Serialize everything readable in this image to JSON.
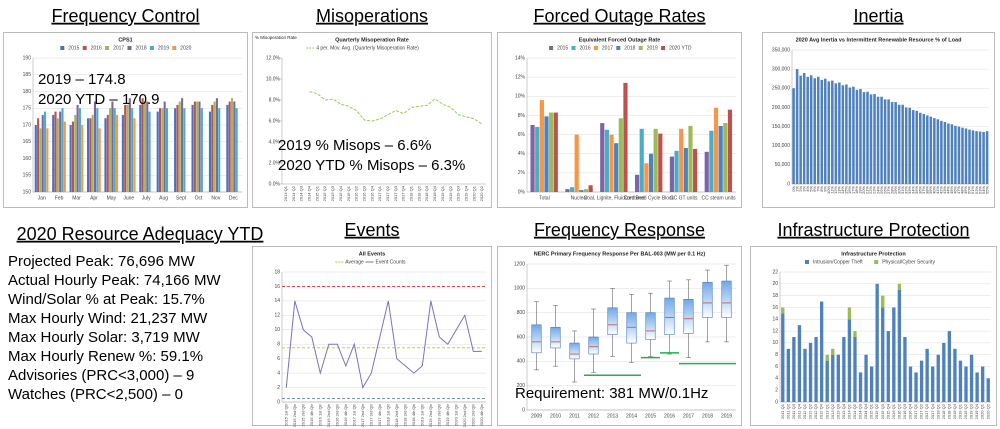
{
  "chart_data": [
    {
      "type": "bar",
      "heading": "Frequency Control",
      "title": "CPS1",
      "categories": [
        "Jan",
        "Feb",
        "Mar",
        "Apr",
        "May",
        "June",
        "July",
        "Aug",
        "Sept",
        "Oct",
        "Nov",
        "Dec"
      ],
      "series": [
        {
          "name": "2015",
          "color": "#4472c4",
          "values": [
            170,
            173,
            170,
            172,
            172,
            173,
            176,
            174,
            175,
            176,
            174,
            176
          ]
        },
        {
          "name": "2016",
          "color": "#c0504d",
          "values": [
            172,
            174,
            171,
            172,
            173,
            176,
            178,
            175,
            176,
            177,
            176,
            177
          ]
        },
        {
          "name": "2017",
          "color": "#9bbb59",
          "values": [
            169,
            172,
            173,
            173,
            175,
            176,
            177,
            175,
            177,
            177,
            177,
            178
          ]
        },
        {
          "name": "2018",
          "color": "#8064a2",
          "values": [
            173,
            174,
            176,
            177,
            177,
            178,
            177,
            177,
            178,
            177,
            178,
            177
          ]
        },
        {
          "name": "2019",
          "color": "#4bacc6",
          "values": [
            174,
            175,
            175,
            175,
            175,
            175,
            174,
            175,
            175,
            175,
            175,
            175
          ]
        },
        {
          "name": "2020",
          "color": "#f79646",
          "values": [
            169,
            171,
            170,
            169,
            173,
            172,
            null,
            null,
            null,
            null,
            null,
            null
          ]
        }
      ],
      "ylim": [
        150,
        190
      ],
      "yticks": [
        150,
        155,
        160,
        165,
        170,
        175,
        180,
        185,
        190
      ],
      "grid": true,
      "annotations": [
        "2019 – 174.8",
        "2020 YTD – 170.9"
      ]
    },
    {
      "type": "line",
      "heading": "Misoperations",
      "title": "Quarterly Misoperation Rate",
      "y_label": "% Misoperation Rate",
      "categories": [
        "2014 Q1",
        "2014 Q2",
        "2014 Q3",
        "2014 Q4",
        "2015 Q1",
        "2015 Q2",
        "2015 Q3",
        "2015 Q4",
        "2016 Q1",
        "2016 Q2",
        "2016 Q3",
        "2016 Q4",
        "2017 Q1",
        "2017 Q2",
        "2017 Q3",
        "2017 Q4",
        "2018 Q1",
        "2018 Q2",
        "2018 Q3",
        "2018 Q4",
        "2019 Q1",
        "2019 Q2",
        "2019 Q3",
        "2019 Q4",
        "2020 Q1",
        "2020 Q2"
      ],
      "series": [
        {
          "name": "4 per. Mov. Avg. (Quarterly Misoperation Rate)",
          "color": "#92d050",
          "dashed": true,
          "values": [
            null,
            null,
            null,
            8.8,
            8.6,
            8.0,
            8.1,
            7.6,
            7.4,
            7.0,
            6.1,
            6.0,
            6.2,
            6.6,
            7.0,
            6.7,
            7.3,
            7.4,
            7.5,
            8.1,
            7.6,
            7.3,
            6.6,
            6.4,
            6.2,
            5.7
          ]
        }
      ],
      "ylim": [
        0,
        12
      ],
      "yticks": [
        {
          "value": 0,
          "label": "0.0%"
        },
        {
          "value": 2,
          "label": "2.0%"
        },
        {
          "value": 4,
          "label": "4.0%"
        },
        {
          "value": 6,
          "label": "6.0%"
        },
        {
          "value": 8,
          "label": "8.0%"
        },
        {
          "value": 10,
          "label": "10.0%"
        },
        {
          "value": 12,
          "label": "12.0%"
        }
      ],
      "grid": false,
      "annotations": [
        "2019 % Misops – 6.6%",
        "2020 YTD % Misops – 6.3%"
      ]
    },
    {
      "type": "bar",
      "heading": "Forced Outage Rates",
      "title": "Equivalent Forced Outage Rate",
      "categories": [
        "Total",
        "Nuclear",
        "Coal, Lignite, Fluidized Bed",
        "Combined Cycle Block",
        "CC GT units",
        "CC steam units"
      ],
      "series": [
        {
          "name": "2015",
          "color": "#7f63a7",
          "values": [
            7.0,
            0.3,
            7.2,
            1.8,
            3.7,
            4.2
          ]
        },
        {
          "name": "2016",
          "color": "#4bacc6",
          "values": [
            6.8,
            0.5,
            6.5,
            6.6,
            4.3,
            6.4
          ]
        },
        {
          "name": "2017",
          "color": "#f79646",
          "values": [
            9.6,
            6.0,
            6.0,
            3.0,
            6.6,
            8.8
          ]
        },
        {
          "name": "2018",
          "color": "#4f81bd",
          "values": [
            7.9,
            0.2,
            5.1,
            4.0,
            4.6,
            6.9
          ]
        },
        {
          "name": "2019",
          "color": "#9bbb59",
          "values": [
            8.3,
            0.3,
            7.7,
            6.6,
            6.9,
            7.2
          ]
        },
        {
          "name": "2020 YTD",
          "color": "#c0504d",
          "values": [
            8.3,
            0.7,
            11.4,
            6.1,
            4.5,
            8.6
          ]
        }
      ],
      "ylim": [
        0,
        14
      ],
      "yticks": [
        {
          "value": 0,
          "label": "0%"
        },
        {
          "value": 2,
          "label": "2%"
        },
        {
          "value": 4,
          "label": "4%"
        },
        {
          "value": 6,
          "label": "6%"
        },
        {
          "value": 8,
          "label": "8%"
        },
        {
          "value": 10,
          "label": "10%"
        },
        {
          "value": 12,
          "label": "12%"
        },
        {
          "value": 14,
          "label": "14%"
        }
      ],
      "grid": true
    },
    {
      "type": "bar",
      "heading": "Inertia",
      "title": "2020 Avg Inertia vs Intermittent Renewable Resource % of Load",
      "categories": [
        "0%",
        "1%",
        "2%",
        "3%",
        "4%",
        "5%",
        "6%",
        "7%",
        "8%",
        "9%",
        "10%",
        "11%",
        "12%",
        "13%",
        "14%",
        "15%",
        "16%",
        "17%",
        "18%",
        "19%",
        "20%",
        "21%",
        "22%",
        "23%",
        "24%",
        "25%",
        "26%",
        "27%",
        "28%",
        "29%",
        "30%",
        "31%",
        "32%",
        "33%",
        "34%",
        "35%",
        "36%",
        "37%",
        "38%",
        "39%",
        "40%",
        "41%",
        "42%",
        "43%",
        "44%",
        "45%",
        "46%",
        "47%",
        "48%",
        "49%",
        "50%",
        "51%",
        "52%",
        "53%",
        "54%",
        "55%"
      ],
      "series": [
        {
          "color": "#4f81bd",
          "values": [
            250000,
            300000,
            283000,
            290000,
            280000,
            284000,
            276000,
            280000,
            272000,
            275000,
            268000,
            270000,
            263000,
            265000,
            258000,
            260000,
            252000,
            254000,
            246000,
            248000,
            240000,
            241000,
            234000,
            235000,
            228000,
            228000,
            221000,
            221000,
            214000,
            214000,
            207000,
            207000,
            200000,
            199000,
            193000,
            191000,
            186000,
            183000,
            179000,
            176000,
            172000,
            169000,
            165000,
            162000,
            158000,
            156000,
            152000,
            150000,
            147000,
            145000,
            142000,
            140000,
            138000,
            137000,
            136000,
            138000
          ]
        }
      ],
      "ylim": [
        0,
        350000
      ],
      "yticks": [
        0,
        {
          "value": 50000,
          "label": "50,000"
        },
        {
          "value": 100000,
          "label": "100,000"
        },
        {
          "value": 150000,
          "label": "150,000"
        },
        {
          "value": 200000,
          "label": "200,000"
        },
        {
          "value": 250000,
          "label": "250,000"
        },
        {
          "value": 300000,
          "label": "300,000"
        },
        {
          "value": 350000,
          "label": "350,000"
        }
      ],
      "grid": true
    },
    {
      "type": "line",
      "heading": "Events",
      "title": "All Events",
      "categories": [
        "2015 1st Qtr",
        "2015 2nd Qtr",
        "2015 3rd Qtr",
        "2015 4th Qtr",
        "2016 1st Qtr",
        "2016 2nd Qtr",
        "2016 3rd Qtr",
        "2016 4th Qtr",
        "2017 1st Qtr",
        "2017 2nd Qtr",
        "2017 3rd Qtr",
        "2017 4th Qtr",
        "2018 1st Qtr",
        "2018 2nd Qtr",
        "2018 3rd Qtr",
        "2018 4th Qtr",
        "2019 1st Qtr",
        "2019 2nd Qtr",
        "2019 3rd Qtr",
        "2019 4th Qtr",
        "2020 1st Qtr",
        "2020 2nd Qtr",
        "2020 3rd Qtr",
        "2020 4th Qtr"
      ],
      "reference_lines": [
        {
          "name": "Average",
          "value": 7.5,
          "color": "#c8c800"
        },
        {
          "value": 16,
          "color": "#e03030"
        },
        {
          "value": 0.5,
          "color": "#4472c4"
        }
      ],
      "series": [
        {
          "name": "Event Counts",
          "color": "#7f6fc0",
          "values": [
            2,
            14,
            10,
            9,
            4,
            8,
            8,
            5,
            8,
            2,
            4,
            9,
            14,
            6,
            5,
            4,
            5,
            14,
            9,
            8,
            10,
            12,
            7,
            7
          ]
        }
      ],
      "ylim": [
        0,
        18
      ],
      "yticks": [
        0,
        2,
        4,
        6,
        8,
        10,
        12,
        14,
        16,
        18
      ],
      "grid": true
    },
    {
      "type": "box",
      "heading": "Frequency Response",
      "title": "NERC Primary Frequency Response Per BAL-003 (MW per 0.1 Hz)",
      "categories": [
        "2009",
        "2010",
        "2011",
        "2012",
        "2013",
        "2014",
        "2015",
        "2016",
        "2017",
        "2018",
        "2019"
      ],
      "boxes": [
        {
          "whislo": 330,
          "q1": 470,
          "med": 560,
          "q3": 700,
          "whishi": 890
        },
        {
          "whislo": 360,
          "q1": 510,
          "med": 560,
          "q3": 680,
          "whishi": 860
        },
        {
          "whislo": 230,
          "q1": 420,
          "med": 460,
          "q3": 550,
          "whishi": 650
        },
        {
          "whislo": 310,
          "q1": 460,
          "med": 520,
          "q3": 600,
          "whishi": 830
        },
        {
          "whislo": 440,
          "q1": 620,
          "med": 700,
          "q3": 840,
          "whishi": 1000
        },
        {
          "whislo": 390,
          "q1": 550,
          "med": 680,
          "q3": 800,
          "whishi": 950
        },
        {
          "whislo": 440,
          "q1": 580,
          "med": 650,
          "q3": 800,
          "whishi": 960
        },
        {
          "whislo": 460,
          "q1": 620,
          "med": 760,
          "q3": 920,
          "whishi": 1060
        },
        {
          "whislo": 430,
          "q1": 630,
          "med": 750,
          "q3": 910,
          "whishi": 1070
        },
        {
          "whislo": 560,
          "q1": 760,
          "med": 880,
          "q3": 1050,
          "whishi": 1150
        },
        {
          "whislo": 560,
          "q1": 760,
          "med": 880,
          "q3": 1060,
          "whishi": 1190
        }
      ],
      "requirement": {
        "color": "#22b14c",
        "values": [
          null,
          null,
          null,
          286,
          286,
          286,
          430,
          470,
          381,
          381,
          381
        ]
      },
      "ylim": [
        0,
        1200
      ],
      "yticks": [
        0,
        200,
        400,
        600,
        800,
        1000,
        1200
      ],
      "grid": true,
      "annotations": [
        "Requirement: 381 MW/0.1Hz"
      ]
    },
    {
      "type": "bar",
      "heading": "Infrastructure Protection",
      "title": "Infrastructure Protection",
      "stacked": true,
      "categories": [
        "2011 Q1",
        "2011 Q2",
        "2011 Q3",
        "2011 Q4",
        "2012 Q1",
        "2012 Q2",
        "2012 Q3",
        "2012 Q4",
        "2013 Q1",
        "2013 Q2",
        "2013 Q3",
        "2013 Q4",
        "2014 Q1",
        "2014 Q2",
        "2014 Q3",
        "2014 Q4",
        "2015 Q1",
        "2015 Q2",
        "2015 Q3",
        "2015 Q4",
        "2016 Q1",
        "2016 Q2",
        "2016 Q3",
        "2016 Q4",
        "2017 Q1",
        "2017 Q2",
        "2017 Q3",
        "2017 Q4",
        "2018 Q1",
        "2018 Q2",
        "2018 Q3",
        "2018 Q4",
        "2019 Q1",
        "2019 Q2",
        "2019 Q3",
        "2019 Q4",
        "2020 Q1",
        "2020 Q2"
      ],
      "series": [
        {
          "name": "Intrusion/Copper Theft",
          "color": "#4f81bd",
          "values": [
            15,
            9,
            11,
            13,
            9,
            10,
            11,
            17,
            7,
            8,
            8,
            11,
            14,
            11,
            5,
            8,
            6,
            20,
            16,
            12,
            16,
            19,
            11,
            6,
            5,
            7,
            9,
            6,
            8,
            10,
            12,
            9,
            7,
            6,
            8,
            5,
            6,
            4
          ]
        },
        {
          "name": "Physical/Cyber Security",
          "color": "#9bbb59",
          "values": [
            1,
            0,
            0,
            0,
            0,
            0,
            0,
            0,
            1,
            1,
            0,
            0,
            2,
            1,
            0,
            0,
            0,
            0,
            2,
            0,
            0,
            1,
            0,
            0,
            0,
            0,
            0,
            0,
            0,
            0,
            0,
            0,
            0,
            0,
            0,
            0,
            0,
            0
          ]
        }
      ],
      "ylim": [
        0,
        22
      ],
      "yticks": [
        0,
        2,
        4,
        6,
        8,
        10,
        12,
        14,
        16,
        18,
        20,
        22
      ],
      "grid": true
    }
  ],
  "resource_adequacy": {
    "heading": "2020 Resource Adequacy YTD",
    "items": [
      "Projected Peak: 76,696 MW",
      "Actual Hourly Peak: 74,166 MW",
      "Wind/Solar % at Peak: 15.7%",
      "Max Hourly Wind: 21,237 MW",
      "Max Hourly Solar: 3,719 MW",
      "Max Hourly Renew %: 59.1%",
      "Advisories (PRC<3,000) – 9",
      "Watches (PRC<2,500) – 0"
    ]
  }
}
